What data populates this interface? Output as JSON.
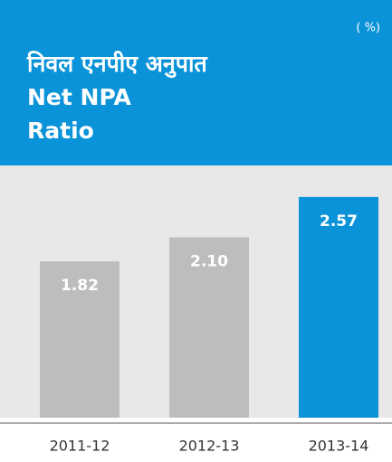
{
  "chart_data": {
    "type": "bar",
    "unit": "( %)",
    "title_hindi": "निवल एनपीए अनुपात",
    "title": [
      "Net NPA",
      "Ratio"
    ],
    "categories": [
      "2011-12",
      "2012-13",
      "2013-14"
    ],
    "values": [
      1.82,
      2.1,
      2.57
    ],
    "value_labels": [
      "1.82",
      "2.10",
      "2.57"
    ],
    "colors": [
      "#bdbdbd",
      "#bdbdbd",
      "#0a93d8"
    ],
    "ylim": [
      0,
      3
    ]
  }
}
